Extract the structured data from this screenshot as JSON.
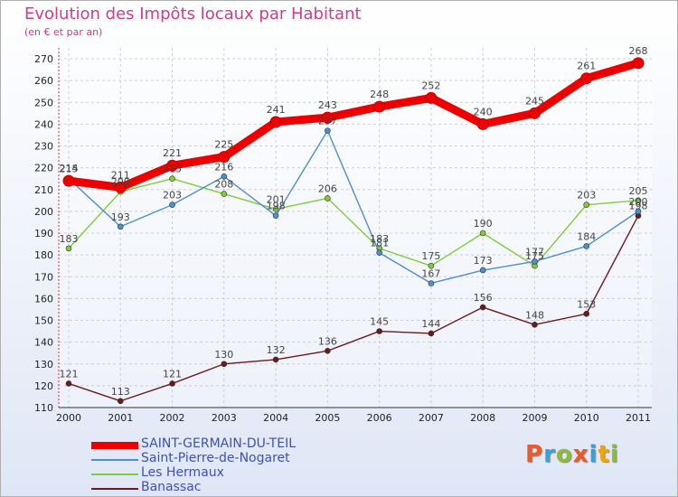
{
  "title": "Evolution des Impôts locaux par Habitant",
  "subtitle": "(en € et par an)",
  "logo": "Proxiti",
  "logo_colors": [
    "#e85c2c",
    "#3aa0d8",
    "#8cbc3a",
    "#e85c2c",
    "#3aa0d8",
    "#f2a400",
    "#8cbc3a"
  ],
  "chart_data": {
    "type": "line",
    "title": "Evolution des Impôts locaux par Habitant",
    "subtitle": "(en € et par an)",
    "x": [
      "2000",
      "2001",
      "2002",
      "2003",
      "2004",
      "2005",
      "2006",
      "2007",
      "2008",
      "2009",
      "2010",
      "2011"
    ],
    "ylim": [
      110,
      270
    ],
    "yticks": [
      110,
      120,
      130,
      140,
      150,
      160,
      170,
      180,
      190,
      200,
      210,
      220,
      230,
      240,
      250,
      260,
      270
    ],
    "grid": true,
    "legend": "bottom-left",
    "series": [
      {
        "name": "SAINT-GERMAIN-DU-TEIL",
        "color": "#ee0000",
        "values": [
          214,
          211,
          221,
          225,
          241,
          243,
          248,
          252,
          240,
          245,
          261,
          268
        ],
        "labels": [
          "214",
          "211",
          "221",
          "225",
          "241",
          "243",
          "248",
          "252",
          "240",
          "245",
          "261",
          "268"
        ]
      },
      {
        "name": "Saint-Pierre-de-Nogaret",
        "color": "#4d8fd0",
        "values": [
          215,
          193,
          203,
          216,
          198,
          237,
          181,
          167,
          173,
          177,
          184,
          200
        ],
        "labels": [
          "215",
          "193",
          "203",
          "216",
          "198",
          "237",
          "181",
          "167",
          "173",
          "177",
          "184",
          "200"
        ]
      },
      {
        "name": "Les Hermaux",
        "color": "#7fcc3a",
        "values": [
          183,
          209,
          215,
          208,
          201,
          206,
          183,
          175,
          190,
          175,
          203,
          205
        ],
        "labels": [
          "183",
          "209",
          "215",
          "208",
          "201",
          "206",
          "183",
          "175",
          "190",
          "175",
          "203",
          "205"
        ]
      },
      {
        "name": "Banassac",
        "color": "#6b1a1a",
        "values": [
          121,
          113,
          121,
          130,
          132,
          136,
          145,
          144,
          156,
          148,
          153,
          198
        ],
        "labels": [
          "121",
          "113",
          "121",
          "130",
          "132",
          "136",
          "145",
          "144",
          "156",
          "148",
          "153",
          "198"
        ]
      }
    ]
  }
}
